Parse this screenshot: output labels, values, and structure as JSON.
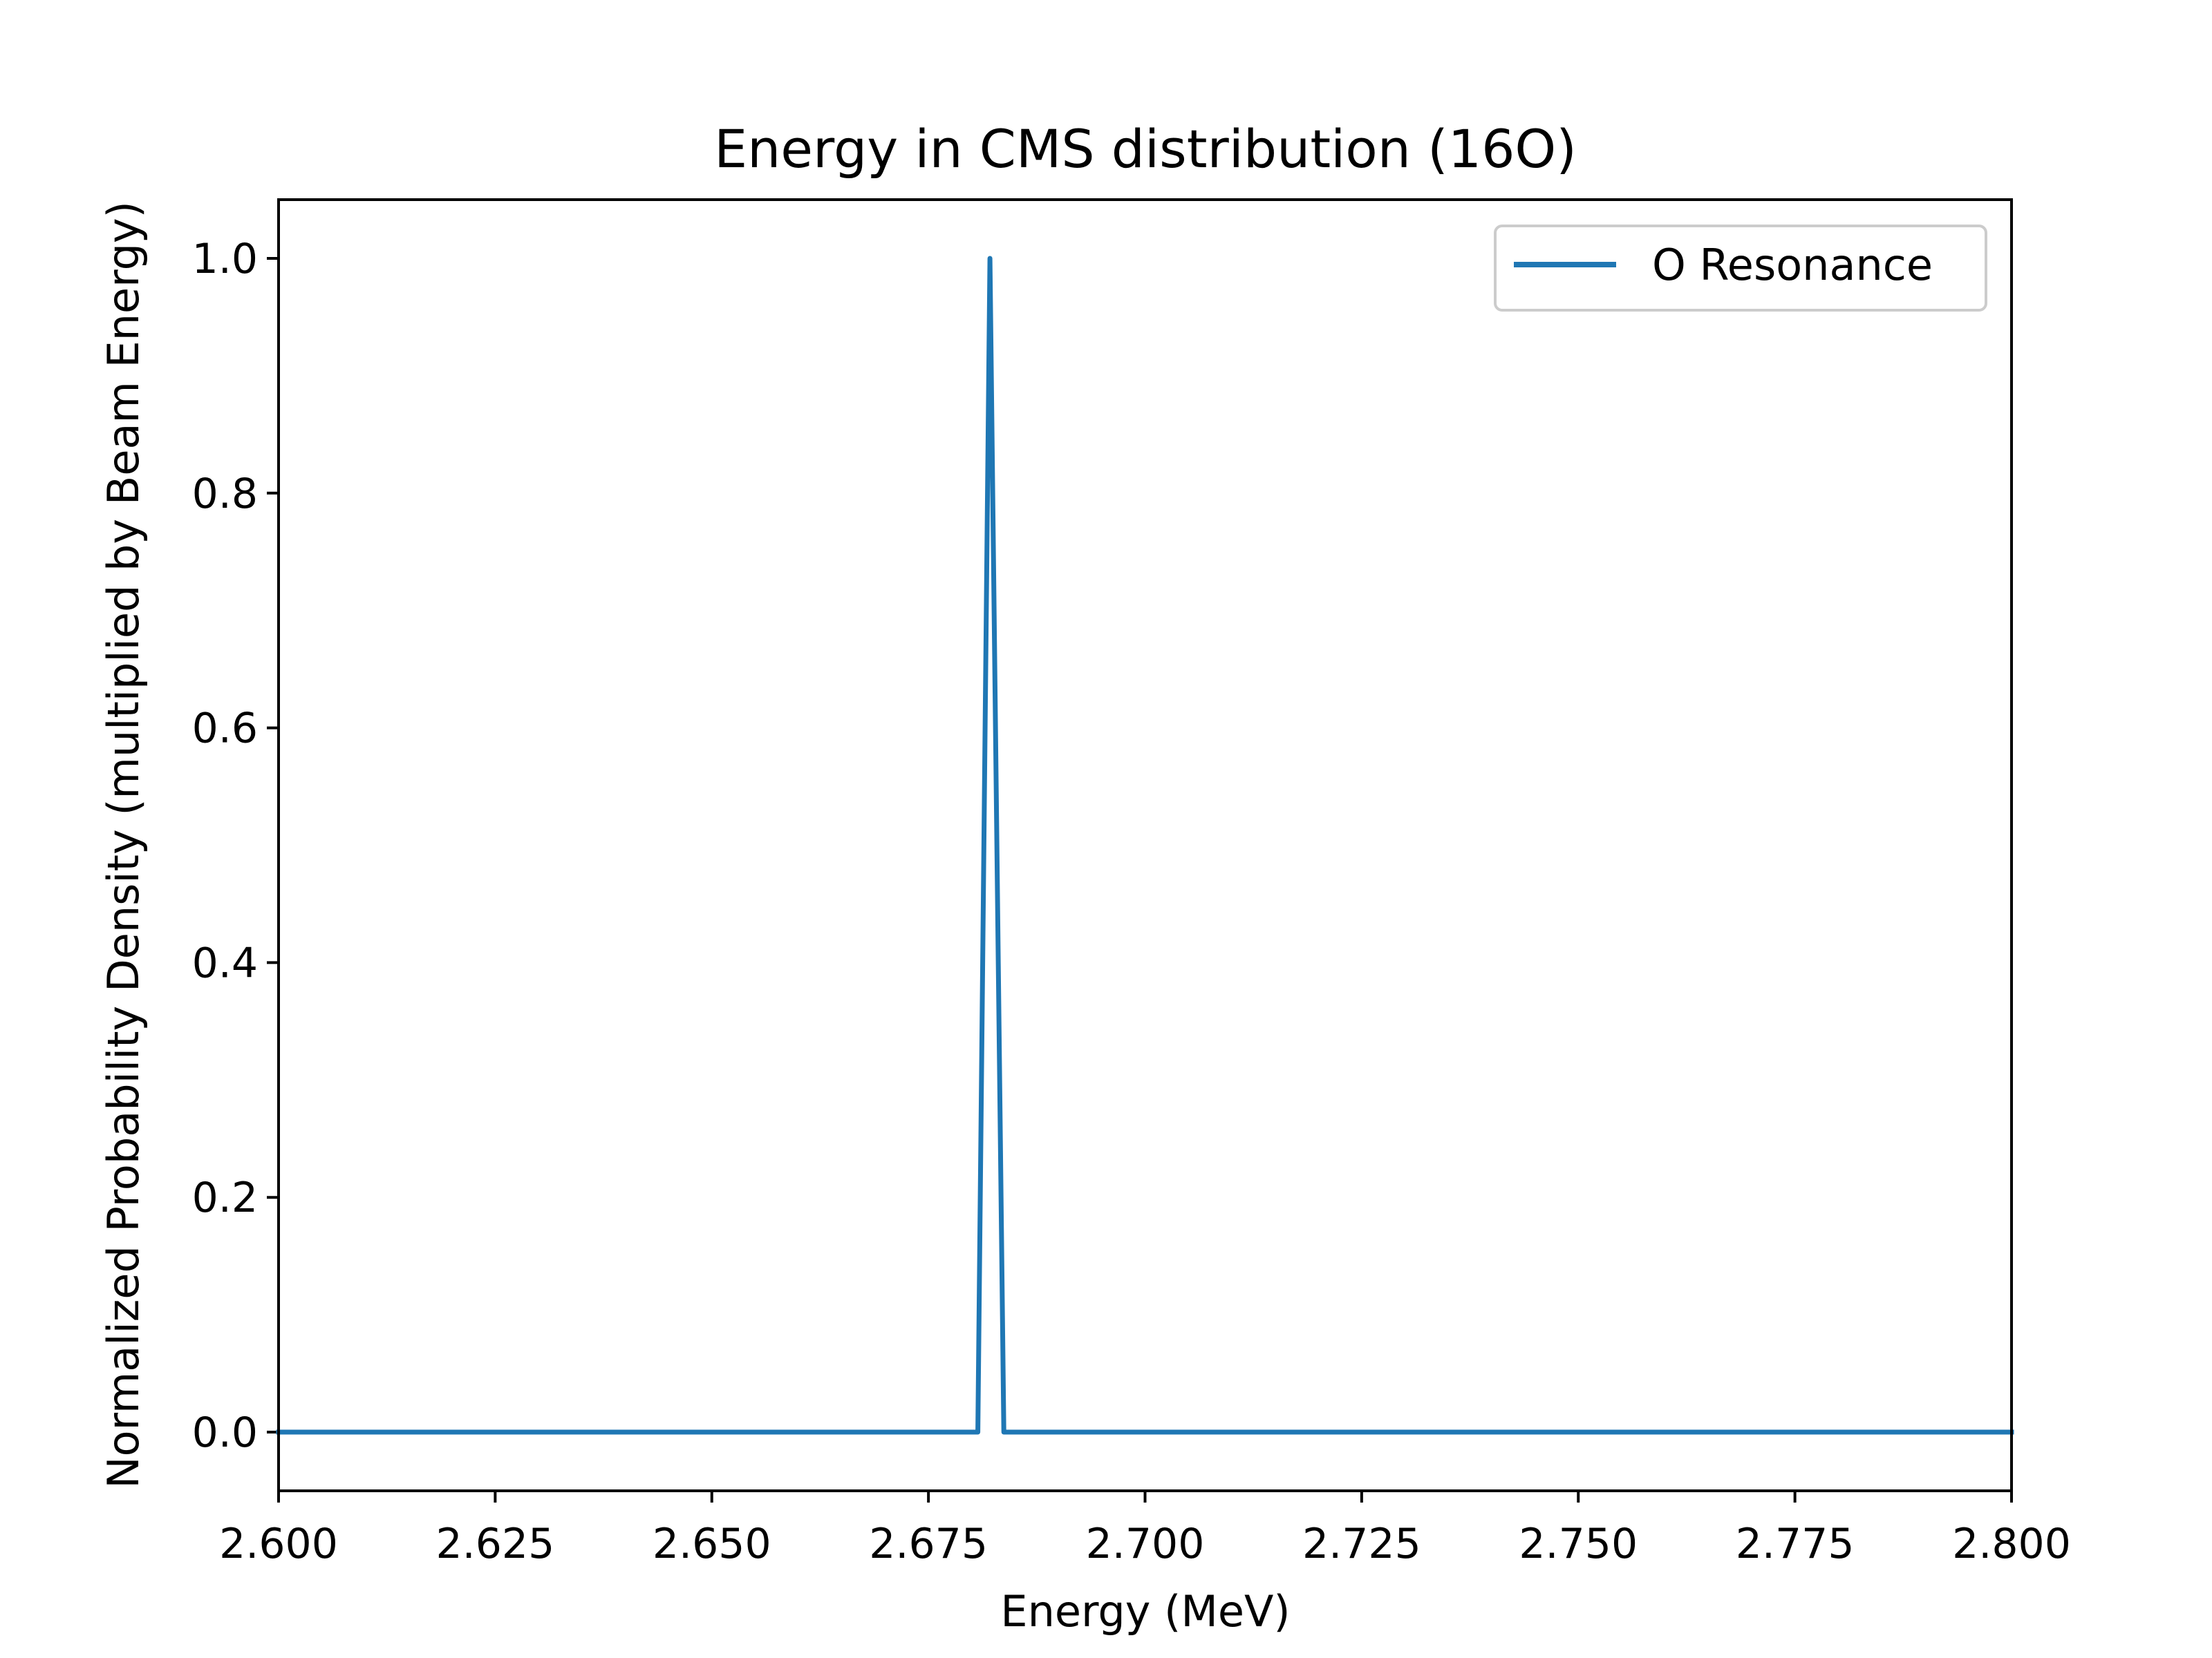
{
  "chart_data": {
    "type": "line",
    "title": "Energy in CMS distribution (16O)",
    "xlabel": "Energy (MeV)",
    "ylabel": "Normalized Probability Density (multiplied by Beam Energy)",
    "xlim": [
      2.6,
      2.8
    ],
    "ylim": [
      -0.05,
      1.05
    ],
    "xticks": [
      2.6,
      2.625,
      2.65,
      2.675,
      2.7,
      2.725,
      2.75,
      2.775,
      2.8
    ],
    "xtick_labels": [
      "2.600",
      "2.625",
      "2.650",
      "2.675",
      "2.700",
      "2.725",
      "2.750",
      "2.775",
      "2.800"
    ],
    "yticks": [
      0.0,
      0.2,
      0.4,
      0.6,
      0.8,
      1.0
    ],
    "ytick_labels": [
      "0.0",
      "0.2",
      "0.4",
      "0.6",
      "0.8",
      "1.0"
    ],
    "grid": false,
    "legend": {
      "position": "upper right"
    },
    "series": [
      {
        "name": "O Resonance",
        "color": "#1f77b4",
        "x": [
          2.6,
          2.6807,
          2.6821,
          2.6837,
          2.8
        ],
        "y": [
          0.0,
          0.0,
          1.0,
          0.0,
          0.0
        ]
      }
    ]
  }
}
